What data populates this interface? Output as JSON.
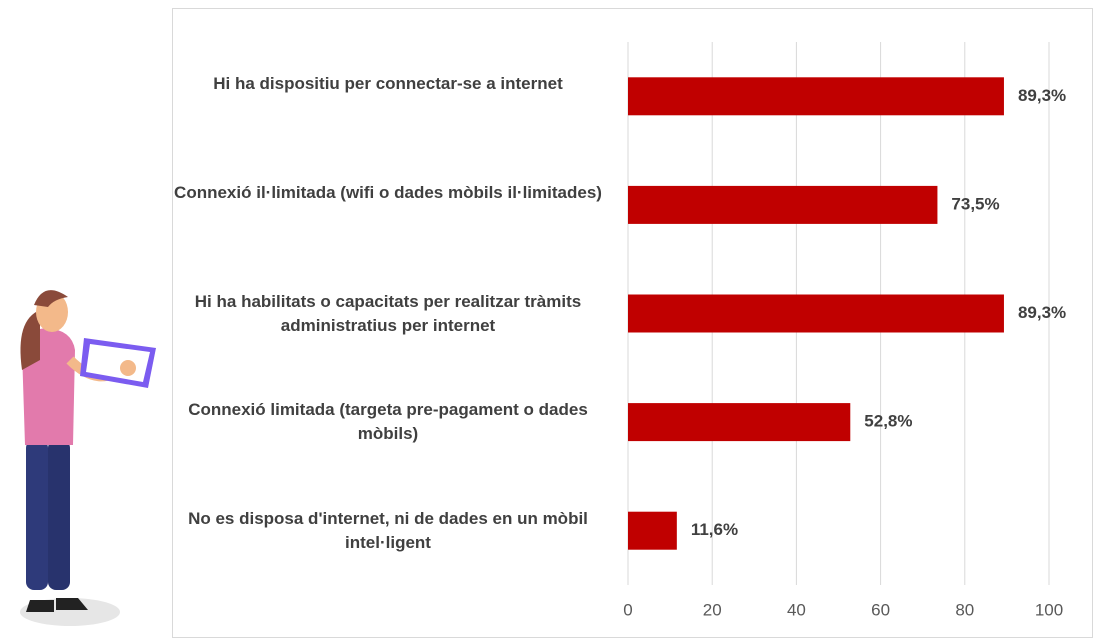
{
  "chart_data": {
    "type": "bar",
    "orientation": "horizontal",
    "categories": [
      "Hi ha dispositiu per connectar-se a internet",
      "Connexió il·limitada (wifi o dades mòbils il·limitades)",
      "Hi ha habilitats o capacitats per realitzar tràmits administratius per internet",
      "Connexió limitada (targeta pre-pagament o dades mòbils)",
      "No es disposa d'internet, ni de dades en un mòbil intel·ligent"
    ],
    "values": [
      89.3,
      73.5,
      89.3,
      52.8,
      11.6
    ],
    "value_labels": [
      "89,3%",
      "73,5%",
      "89,3%",
      "52,8%",
      "11,6%"
    ],
    "color": "#c00000",
    "xlim": [
      0,
      100
    ],
    "xticks": [
      0,
      20,
      40,
      60,
      80,
      100
    ],
    "grid": true
  }
}
